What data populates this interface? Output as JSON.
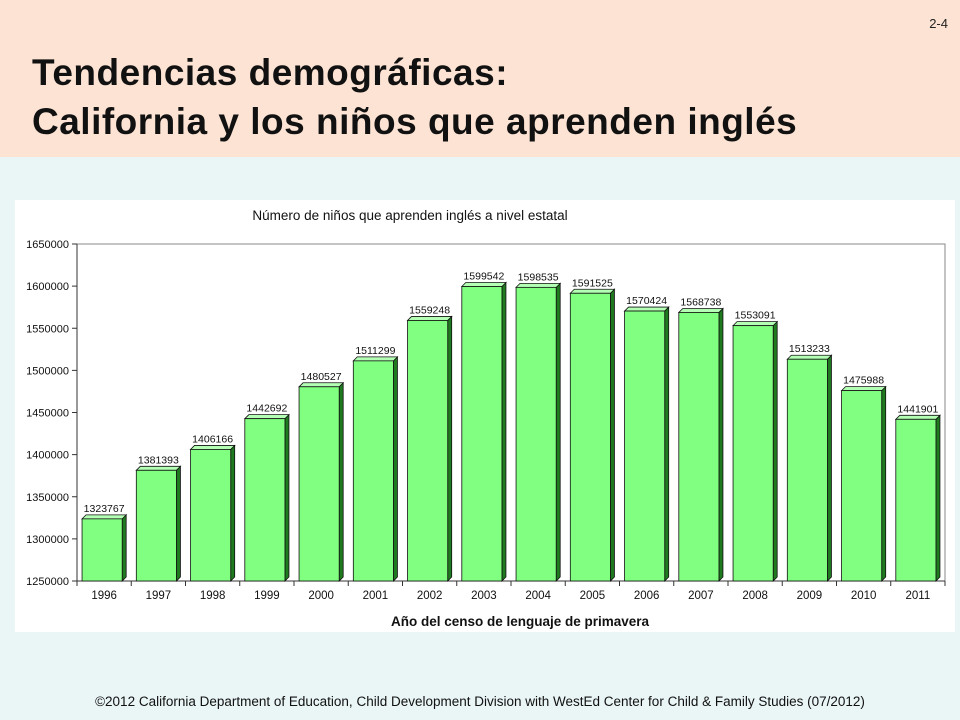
{
  "slide": {
    "number": "2-4",
    "title_line1": "Tendencias demográficas:",
    "title_line2": "California y los niños que aprenden inglés",
    "footer": "©2012 California Department of Education, Child Development Division with WestEd Center for Child & Family Studies (07/2012)"
  },
  "colors": {
    "bar_front": "#80ff80",
    "bar_top": "#b3ffb3",
    "bar_side": "#1f7a1f",
    "header_bg": "#fce3d4",
    "slide_bg": "#eaf5f5"
  },
  "chart_data": {
    "type": "bar",
    "title": "Número de niños que aprenden  inglés a nivel estatal",
    "xlabel": "Año del censo de lenguaje de primavera",
    "ylabel": "",
    "categories": [
      "1996",
      "1997",
      "1998",
      "1999",
      "2000",
      "2001",
      "2002",
      "2003",
      "2004",
      "2005",
      "2006",
      "2007",
      "2008",
      "2009",
      "2010",
      "2011"
    ],
    "values": [
      1323767,
      1381393,
      1406166,
      1442692,
      1480527,
      1511299,
      1559248,
      1599542,
      1598535,
      1591525,
      1570424,
      1568738,
      1553091,
      1513233,
      1475988,
      1441901
    ],
    "ylim": [
      1250000,
      1650000
    ],
    "yticks": [
      1250000,
      1300000,
      1350000,
      1400000,
      1450000,
      1500000,
      1550000,
      1600000,
      1650000
    ],
    "grid": false,
    "legend": "none",
    "three_d": true
  }
}
